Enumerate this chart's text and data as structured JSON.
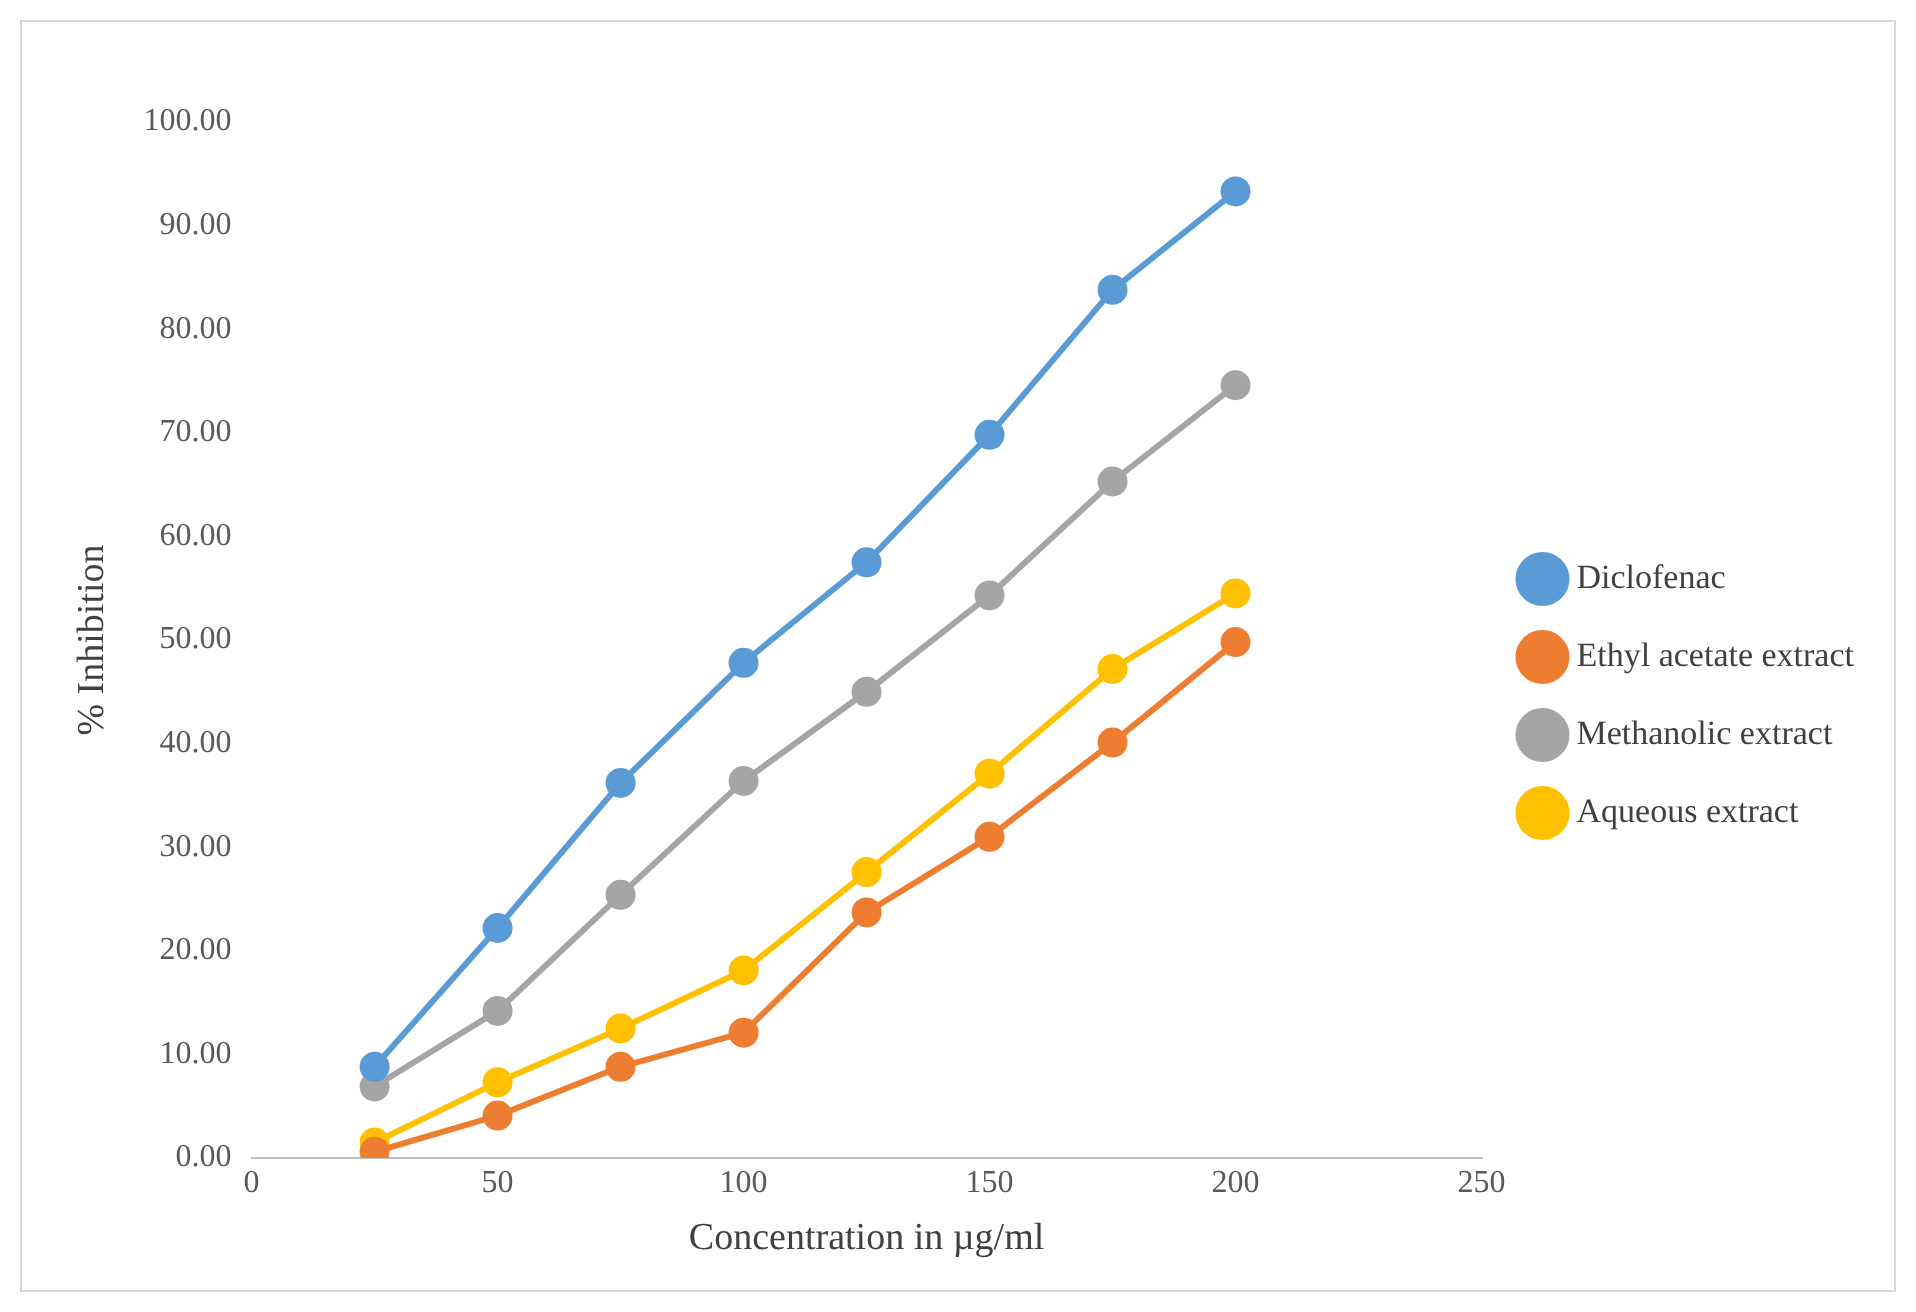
{
  "chart_data": {
    "type": "line",
    "xlabel": "Concentration in µg/ml",
    "ylabel": "% Inhibition",
    "x": [
      25,
      50,
      75,
      100,
      125,
      150,
      175,
      200
    ],
    "series": [
      {
        "name": "Diclofenac",
        "color": "#5b9bd5",
        "values": [
          8.8,
          22.2,
          36.2,
          47.8,
          57.5,
          69.8,
          83.8,
          93.3
        ]
      },
      {
        "name": "Ethyl acetate extract",
        "color": "#ed7d31",
        "values": [
          0.6,
          4.1,
          8.8,
          12.1,
          23.7,
          31.0,
          40.1,
          49.8
        ]
      },
      {
        "name": "Methanolic extract",
        "color": "#a5a5a5",
        "values": [
          6.9,
          14.2,
          25.4,
          36.4,
          45.0,
          54.3,
          65.3,
          74.6
        ]
      },
      {
        "name": "Aqueous extract",
        "color": "#ffc000",
        "values": [
          1.5,
          7.3,
          12.5,
          18.1,
          27.6,
          37.1,
          47.2,
          54.5
        ]
      }
    ],
    "xlim": [
      0,
      250
    ],
    "xticks": [
      0,
      50,
      100,
      150,
      200,
      250
    ],
    "ylim": [
      0,
      100
    ],
    "yticks": [
      {
        "value": 0,
        "label": "0.00"
      },
      {
        "value": 10,
        "label": "10.00"
      },
      {
        "value": 20,
        "label": "20.00"
      },
      {
        "value": 30,
        "label": "30.00"
      },
      {
        "value": 40,
        "label": "40.00"
      },
      {
        "value": 50,
        "label": "50.00"
      },
      {
        "value": 60,
        "label": "60.00"
      },
      {
        "value": 70,
        "label": "70.00"
      },
      {
        "value": 80,
        "label": "80.00"
      },
      {
        "value": 90,
        "label": "90.00"
      },
      {
        "value": 100,
        "label": "100.00"
      }
    ],
    "grid": false,
    "legend": "right",
    "marker": "circle",
    "line_style": "solid"
  }
}
